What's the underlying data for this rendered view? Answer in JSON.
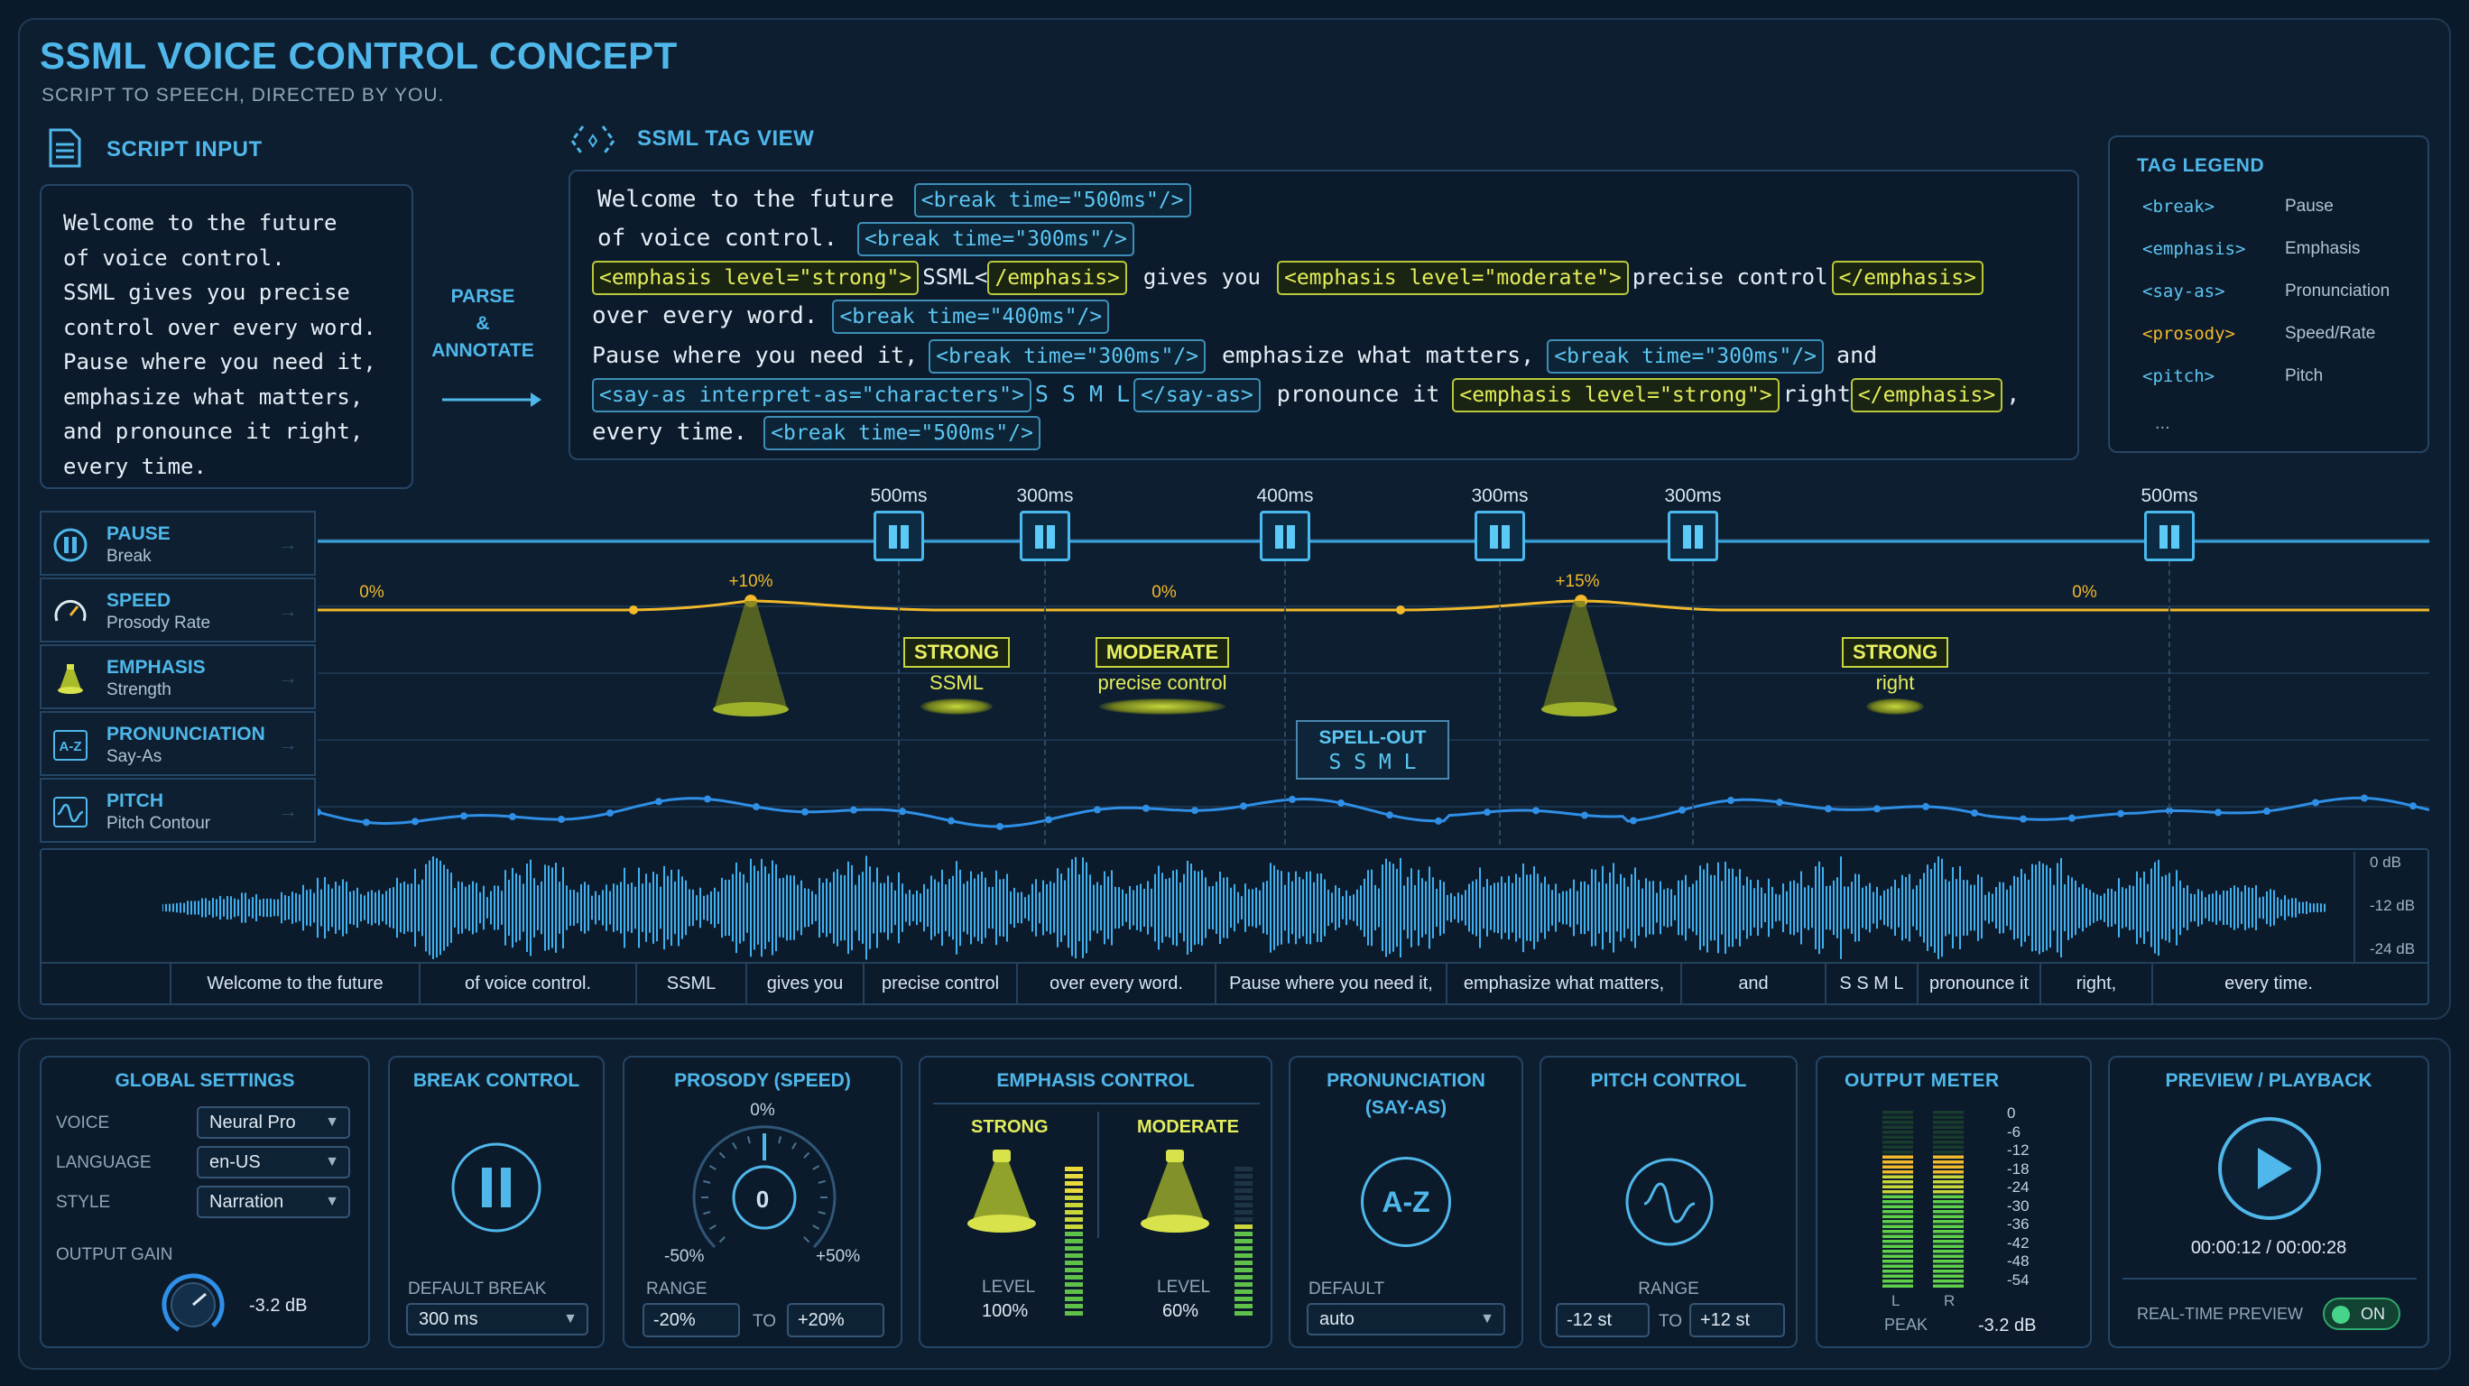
{
  "header": {
    "title": "SSML VOICE CONTROL CONCEPT",
    "subtitle": "SCRIPT TO SPEECH, DIRECTED BY YOU."
  },
  "script_input": {
    "title": "SCRIPT INPUT",
    "lines": [
      "Welcome to the future",
      "of voice control.",
      "SSML gives you precise",
      "control over every word.",
      "Pause where you need it,",
      "emphasize what matters,",
      "and pronounce it right,",
      "every time."
    ]
  },
  "parse": {
    "line1": "PARSE",
    "line2": "&",
    "line3": "ANNOTATE"
  },
  "tag_view": {
    "title": "SSML TAG VIEW",
    "l1_text": "Welcome to the future",
    "l1_tag": "<break time=\"500ms\"/>",
    "l2_text": "of voice control.",
    "l2_tag": "<break time=\"300ms\"/>",
    "l3_tag1": "<emphasis level=\"strong\">",
    "l3_word1": "SSML<",
    "l3_tag2": "/emphasis>",
    "l3_text": "gives you",
    "l3_tag3": "<emphasis level=\"moderate\">",
    "l3_word2": "precise control",
    "l3_tag4": "</emphasis>",
    "l4_text": "over every word.",
    "l4_tag": "<break time=\"400ms\"/>",
    "l5_text1": "Pause where you need it,",
    "l5_tag1": "<break time=\"300ms\"/>",
    "l5_text2": "emphasize what matters,",
    "l5_tag2": "<break time=\"300ms\"/>",
    "l5_text3": "and",
    "l6_tag1": "<say-as interpret-as=\"characters\">",
    "l6_chars": "S S M L",
    "l6_tag2": "</say-as>",
    "l6_text": "pronounce it",
    "l6_tag3": "<emphasis level=\"strong\">",
    "l6_word": "right",
    "l6_tag4": "</emphasis>",
    "l6_comma": ",",
    "l7_text": "every time.",
    "l7_tag": "<break time=\"500ms\"/>"
  },
  "legend": {
    "title": "TAG LEGEND",
    "items": [
      {
        "tag": "<break>",
        "desc": "Pause"
      },
      {
        "tag": "<emphasis>",
        "desc": "Emphasis"
      },
      {
        "tag": "<say-as>",
        "desc": "Pronunciation"
      },
      {
        "tag": "<prosody>",
        "desc": "Speed/Rate"
      },
      {
        "tag": "<pitch>",
        "desc": "Pitch"
      }
    ],
    "more": "..."
  },
  "lanes": [
    {
      "name": "PAUSE",
      "sub": "Break",
      "icon": "pause-icon"
    },
    {
      "name": "SPEED",
      "sub": "Prosody Rate",
      "icon": "speedometer-icon"
    },
    {
      "name": "EMPHASIS",
      "sub": "Strength",
      "icon": "spotlight-icon"
    },
    {
      "name": "PRONUNCIATION",
      "sub": "Say-As",
      "icon": "a-z-icon"
    },
    {
      "name": "PITCH",
      "sub": "Pitch Contour",
      "icon": "wave-icon"
    }
  ],
  "breaks": [
    "500ms",
    "300ms",
    "400ms",
    "300ms",
    "300ms",
    "500ms"
  ],
  "speed_labels": [
    "0%",
    "+10%",
    "0%",
    "+15%",
    "0%"
  ],
  "emphasis_marks": [
    {
      "level": "STRONG",
      "word": "SSML"
    },
    {
      "level": "MODERATE",
      "word": "precise control"
    },
    {
      "level": "STRONG",
      "word": "right"
    }
  ],
  "spellout": {
    "label": "SPELL-OUT",
    "chars": "S S M L"
  },
  "waveform_db": [
    "0 dB",
    "-12 dB",
    "-24 dB"
  ],
  "words": [
    "Welcome to the future",
    "of voice control.",
    "SSML",
    "gives you",
    "precise control",
    "over every word.",
    "Pause where you need it,",
    "emphasize what matters,",
    "and",
    "S S M L",
    "pronounce it",
    "right,",
    "every time."
  ],
  "global": {
    "title": "GLOBAL SETTINGS",
    "voice_label": "VOICE",
    "voice": "Neural Pro",
    "language_label": "LANGUAGE",
    "language": "en-US",
    "style_label": "STYLE",
    "style": "Narration",
    "gain_label": "OUTPUT GAIN",
    "gain": "-3.2 dB"
  },
  "break_control": {
    "title": "BREAK CONTROL",
    "default_label": "DEFAULT BREAK",
    "default": "300 ms"
  },
  "prosody": {
    "title": "PROSODY (SPEED)",
    "top": "0%",
    "center": "0",
    "min": "-50%",
    "max": "+50%",
    "range_label": "RANGE",
    "from": "-20%",
    "to_label": "TO",
    "to": "+20%"
  },
  "emphasis_control": {
    "title": "EMPHASIS CONTROL",
    "strong_label": "STRONG",
    "strong_level_label": "LEVEL",
    "strong_level": "100%",
    "strong_fill": 1.0,
    "moderate_label": "MODERATE",
    "moderate_level_label": "LEVEL",
    "moderate_level": "60%",
    "moderate_fill": 0.6
  },
  "pronunciation": {
    "title1": "PRONUNCIATION",
    "title2": "(SAY-AS)",
    "icon_text": "A-Z",
    "default_label": "DEFAULT",
    "default": "auto"
  },
  "pitch_control": {
    "title": "PITCH CONTROL",
    "range_label": "RANGE",
    "from": "-12 st",
    "to_label": "TO",
    "to": "+12 st"
  },
  "output_meter": {
    "title": "OUTPUT METER",
    "scale": [
      "0",
      "-6",
      "-12",
      "-18",
      "-24",
      "-30",
      "-36",
      "-42",
      "-48",
      "-54"
    ],
    "l_label": "L",
    "r_label": "R",
    "peak_label": "PEAK",
    "peak": "-3.2 dB",
    "l_fill": 0.74,
    "r_fill": 0.74
  },
  "preview": {
    "title": "PREVIEW / PLAYBACK",
    "time": "00:00:12 / 00:00:28",
    "rt_label": "REAL-TIME PREVIEW",
    "toggle": "ON"
  },
  "colors": {
    "accent": "#4fb7ea",
    "emphasis": "#e4ee5a",
    "speed": "#f1b92b",
    "pitch": "#2f8fe6",
    "meter_green": "#5fd04a"
  }
}
